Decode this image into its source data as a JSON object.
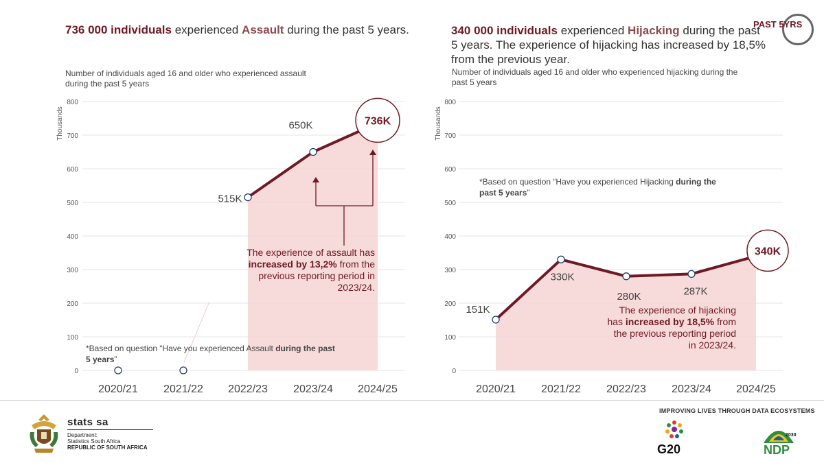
{
  "headline_left": {
    "number": "736 000 individuals",
    "text1": " experienced ",
    "keyword": "Assault",
    "text2": " during the past 5 years."
  },
  "headline_right": {
    "number": "340 000 individuals",
    "text1": " experienced ",
    "keyword": "Hijacking",
    "text2": " during the past 5 years. The experience of hijacking has increased by 18,5% from the previous year."
  },
  "subtitle_left": "Number of individuals aged 16 and older who experienced assault during the past 5 years",
  "subtitle_right": "Number of individuals aged 16 and older who experienced hijacking during the past 5 years",
  "annotation_left": {
    "pre": "The experience of assault has ",
    "bold": "increased by 13,2%",
    "post": " from the previous reporting period in 2023/24."
  },
  "annotation_right": {
    "pre": "The experience of hijacking has ",
    "bold": "increased by 18,5%",
    "post": " from the previous reporting period in 2023/24."
  },
  "note_left": {
    "pre": "*Based on question “Have you experienced Assault ",
    "bold": "during the past 5 years",
    "post": "”"
  },
  "note_right": {
    "pre": "*Based on question “Have you experienced Hijacking ",
    "bold": "during the past 5 years",
    "post": "”"
  },
  "badge": {
    "label": "PAST 5YRS",
    "icon": "circular-arrow-icon"
  },
  "footer": {
    "stats_name": "stats sa",
    "department": "Department:",
    "dept_name": "Statistics South Africa",
    "republic": "REPUBLIC OF SOUTH AFRICA",
    "tagline": "IMPROVING LIVES THROUGH DATA ECOSYSTEMS",
    "g20_label": "G20",
    "ndp_label": "NDP",
    "ndp_year": "2030"
  },
  "colors": {
    "line": "#6e1a24",
    "area": "#f6d3d4",
    "accent": "#8c4a52"
  },
  "chart_data": [
    {
      "type": "line",
      "categories": [
        "2020/21",
        "2021/22",
        "2022/23",
        "2023/24",
        "2024/25"
      ],
      "series": [
        {
          "values": [
            0,
            0,
            515,
            650,
            736
          ]
        }
      ],
      "value_labels": [
        "",
        "",
        "515K",
        "650K",
        "736K"
      ],
      "ylabel": "Thousands",
      "ylim": [
        0,
        800
      ],
      "yticks": [
        "0",
        "100",
        "200",
        "300",
        "400",
        "500",
        "600",
        "700",
        "800"
      ],
      "shaded_from_index": 2,
      "grid": true
    },
    {
      "type": "line",
      "categories": [
        "2020/21",
        "2021/22",
        "2022/23",
        "2023/24",
        "2024/25"
      ],
      "series": [
        {
          "values": [
            151,
            330,
            280,
            287,
            340
          ]
        }
      ],
      "value_labels": [
        "151K",
        "330K",
        "280K",
        "287K",
        "340K"
      ],
      "ylabel": "Thousands",
      "ylim": [
        0,
        800
      ],
      "yticks": [
        "0",
        "100",
        "200",
        "300",
        "400",
        "500",
        "600",
        "700",
        "800"
      ],
      "shaded_from_index": 0,
      "grid": true
    }
  ]
}
